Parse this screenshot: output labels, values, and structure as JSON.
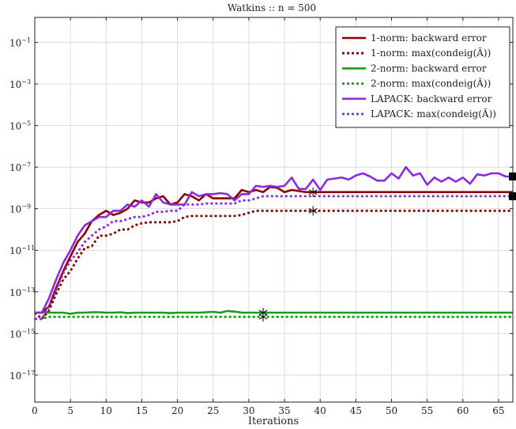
{
  "chart_data": {
    "type": "line",
    "title": "Watkins :: n = 500",
    "xlabel": "Iterations",
    "ylabel": "",
    "xlim": [
      0,
      67
    ],
    "ylim_log10": [
      -18.3,
      0.2
    ],
    "yscale": "log",
    "grid": true,
    "legend_position": "top-right",
    "x_ticks": [
      0,
      5,
      10,
      15,
      20,
      25,
      30,
      35,
      40,
      45,
      50,
      55,
      60,
      65
    ],
    "y_ticks": [
      {
        "base": "10",
        "exp": "−1",
        "log10": -1
      },
      {
        "base": "10",
        "exp": "−3",
        "log10": -3
      },
      {
        "base": "10",
        "exp": "−5",
        "log10": -5
      },
      {
        "base": "10",
        "exp": "−7",
        "log10": -7
      },
      {
        "base": "10",
        "exp": "−9",
        "log10": -9
      },
      {
        "base": "10",
        "exp": "−11",
        "log10": -11
      },
      {
        "base": "10",
        "exp": "−13",
        "log10": -13
      },
      {
        "base": "10",
        "exp": "−15",
        "log10": -15
      },
      {
        "base": "10",
        "exp": "−17",
        "log10": -17
      }
    ],
    "series": [
      {
        "name": "1-norm: backward error",
        "color": "#8b0000",
        "style": "solid",
        "x": [
          0,
          1,
          2,
          3,
          4,
          5,
          6,
          7,
          8,
          9,
          10,
          11,
          12,
          13,
          14,
          15,
          16,
          17,
          18,
          19,
          20,
          21,
          22,
          23,
          24,
          25,
          26,
          27,
          28,
          29,
          30,
          31,
          32,
          33,
          34,
          35,
          36,
          37,
          38,
          39,
          40,
          41,
          42,
          43,
          44,
          45,
          46,
          47,
          48,
          49,
          50,
          51,
          52,
          53,
          54,
          55,
          56,
          57,
          58,
          59,
          60,
          61,
          62,
          63,
          64,
          65,
          66,
          67
        ],
        "log10_y": [
          -14,
          -14,
          -13.7,
          -12.8,
          -12,
          -11.3,
          -10.6,
          -10.2,
          -9.6,
          -9.3,
          -9.1,
          -9.3,
          -9.2,
          -9.0,
          -8.6,
          -8.7,
          -8.7,
          -8.5,
          -8.4,
          -8.8,
          -8.7,
          -8.3,
          -8.4,
          -8.6,
          -8.3,
          -8.5,
          -8.5,
          -8.5,
          -8.5,
          -8.1,
          -8.2,
          -8.1,
          -8.2,
          -7.95,
          -8.0,
          -8.2,
          -8.1,
          -8.15,
          -8.2,
          -8.2,
          -8.2,
          -8.2,
          -8.2,
          -8.2,
          -8.2,
          -8.2,
          -8.2,
          -8.2,
          -8.2,
          -8.2,
          -8.2,
          -8.2,
          -8.2,
          -8.2,
          -8.2,
          -8.2,
          -8.2,
          -8.2,
          -8.2,
          -8.2,
          -8.2,
          -8.2,
          -8.2,
          -8.2,
          -8.2,
          -8.2,
          -8.2,
          -8.2
        ]
      },
      {
        "name": "1-norm: max(condeig(Ã))",
        "color": "#8b0000",
        "style": "dotted",
        "x": [
          0,
          1,
          2,
          3,
          4,
          5,
          6,
          7,
          8,
          9,
          10,
          11,
          12,
          13,
          14,
          15,
          16,
          17,
          18,
          19,
          20,
          21,
          22,
          23,
          24,
          25,
          26,
          27,
          28,
          29,
          30,
          31,
          32,
          33,
          34,
          35,
          36,
          37,
          38,
          39,
          40,
          41,
          42,
          43,
          44,
          45,
          46,
          47,
          48,
          49,
          50,
          51,
          52,
          53,
          54,
          55,
          56,
          57,
          58,
          59,
          60,
          61,
          62,
          63,
          64,
          65,
          66,
          67
        ],
        "log10_y": [
          -14,
          -14.3,
          -13.9,
          -13.1,
          -12.4,
          -12.0,
          -11.4,
          -10.9,
          -10.8,
          -10.3,
          -10.3,
          -10.2,
          -10.0,
          -10.0,
          -9.8,
          -9.7,
          -9.65,
          -9.65,
          -9.65,
          -9.65,
          -9.6,
          -9.4,
          -9.35,
          -9.35,
          -9.35,
          -9.35,
          -9.35,
          -9.35,
          -9.35,
          -9.3,
          -9.2,
          -9.1,
          -9.1,
          -9.1,
          -9.1,
          -9.1,
          -9.1,
          -9.1,
          -9.1,
          -9.1,
          -9.1,
          -9.1,
          -9.1,
          -9.1,
          -9.1,
          -9.1,
          -9.1,
          -9.1,
          -9.1,
          -9.1,
          -9.1,
          -9.1,
          -9.1,
          -9.1,
          -9.1,
          -9.1,
          -9.1,
          -9.1,
          -9.1,
          -9.1,
          -9.1,
          -9.1,
          -9.1,
          -9.1,
          -9.1,
          -9.1,
          -9.1,
          -9.1
        ]
      },
      {
        "name": "2-norm: backward error",
        "color": "#1b9a1b",
        "style": "solid",
        "x": [
          0,
          1,
          2,
          3,
          4,
          5,
          6,
          7,
          8,
          9,
          10,
          11,
          12,
          13,
          14,
          15,
          16,
          17,
          18,
          19,
          20,
          21,
          22,
          23,
          24,
          25,
          26,
          27,
          28,
          29,
          30,
          31,
          32,
          33,
          34,
          35,
          36,
          37,
          38,
          39,
          40,
          41,
          42,
          43,
          44,
          45,
          46,
          47,
          48,
          49,
          50,
          51,
          52,
          53,
          54,
          55,
          56,
          57,
          58,
          59,
          60,
          61,
          62,
          63,
          64,
          65,
          66,
          67
        ],
        "log10_y": [
          -14,
          -14,
          -14,
          -14,
          -14,
          -14.05,
          -14,
          -14,
          -13.98,
          -13.98,
          -14,
          -14,
          -13.98,
          -14.02,
          -14,
          -14,
          -14,
          -14,
          -14,
          -14.02,
          -14,
          -14,
          -14,
          -14,
          -13.98,
          -13.96,
          -14,
          -13.92,
          -13.95,
          -14,
          -14,
          -14,
          -14,
          -14,
          -14,
          -14,
          -14,
          -14,
          -14,
          -14,
          -14,
          -14,
          -14,
          -14,
          -14,
          -14,
          -14,
          -14,
          -14,
          -14,
          -14,
          -14,
          -14,
          -14,
          -14,
          -14,
          -14,
          -14,
          -14,
          -14,
          -14,
          -14,
          -14,
          -14,
          -14,
          -14,
          -14,
          -14
        ]
      },
      {
        "name": "2-norm: max(condeig(Ã))",
        "color": "#1b9a1b",
        "style": "dotted",
        "x": [
          0,
          1,
          2,
          3,
          4,
          5,
          6,
          7,
          8,
          9,
          10,
          11,
          12,
          13,
          14,
          15,
          16,
          17,
          18,
          19,
          20,
          21,
          22,
          23,
          24,
          25,
          26,
          27,
          28,
          29,
          30,
          31,
          32,
          33,
          34,
          35,
          36,
          37,
          38,
          39,
          40,
          41,
          42,
          43,
          44,
          45,
          46,
          47,
          48,
          49,
          50,
          51,
          52,
          53,
          54,
          55,
          56,
          57,
          58,
          59,
          60,
          61,
          62,
          63,
          64,
          65,
          66,
          67
        ],
        "log10_y": [
          -14.3,
          -14.3,
          -14.2,
          -14.2,
          -14.2,
          -14.2,
          -14.2,
          -14.2,
          -14.2,
          -14.2,
          -14.2,
          -14.2,
          -14.2,
          -14.2,
          -14.2,
          -14.2,
          -14.2,
          -14.2,
          -14.2,
          -14.2,
          -14.2,
          -14.2,
          -14.2,
          -14.2,
          -14.2,
          -14.2,
          -14.2,
          -14.2,
          -14.2,
          -14.2,
          -14.2,
          -14.2,
          -14.2,
          -14.2,
          -14.2,
          -14.2,
          -14.2,
          -14.2,
          -14.2,
          -14.2,
          -14.2,
          -14.2,
          -14.2,
          -14.2,
          -14.2,
          -14.2,
          -14.2,
          -14.2,
          -14.2,
          -14.2,
          -14.2,
          -14.2,
          -14.2,
          -14.2,
          -14.2,
          -14.2,
          -14.2,
          -14.2,
          -14.2,
          -14.2,
          -14.2,
          -14.2,
          -14.2,
          -14.2,
          -14.2,
          -14.2,
          -14.2,
          -14.2
        ]
      },
      {
        "name": "LAPACK: backward error",
        "color": "#8a2be2",
        "style": "solid",
        "x": [
          0,
          1,
          2,
          3,
          4,
          5,
          6,
          7,
          8,
          9,
          10,
          11,
          12,
          13,
          14,
          15,
          16,
          17,
          18,
          19,
          20,
          21,
          22,
          23,
          24,
          25,
          26,
          27,
          28,
          29,
          30,
          31,
          32,
          33,
          34,
          35,
          36,
          37,
          38,
          39,
          40,
          41,
          42,
          43,
          44,
          45,
          46,
          47,
          48,
          49,
          50,
          51,
          52,
          53,
          54,
          55,
          56,
          57,
          58,
          59,
          60,
          61,
          62,
          63,
          64,
          65,
          66,
          67
        ],
        "log10_y": [
          -14,
          -14,
          -13.3,
          -12.4,
          -11.6,
          -11,
          -10.3,
          -9.8,
          -9.6,
          -9.4,
          -9.4,
          -9.1,
          -9.1,
          -8.8,
          -8.9,
          -8.6,
          -8.9,
          -8.3,
          -8.7,
          -8.8,
          -8.8,
          -8.8,
          -8.2,
          -8.4,
          -8.3,
          -8.3,
          -8.25,
          -8.3,
          -8.6,
          -8.3,
          -8.3,
          -7.9,
          -7.95,
          -7.9,
          -7.95,
          -7.9,
          -7.5,
          -8.05,
          -8.05,
          -7.6,
          -8.1,
          -7.6,
          -7.55,
          -7.5,
          -7.6,
          -7.4,
          -7.3,
          -7.45,
          -7.65,
          -7.65,
          -7.3,
          -7.55,
          -7.0,
          -7.4,
          -7.3,
          -7.85,
          -7.5,
          -7.7,
          -7.5,
          -7.7,
          -7.5,
          -7.8,
          -7.35,
          -7.4,
          -7.3,
          -7.3,
          -7.45,
          -7.45
        ]
      },
      {
        "name": "LAPACK: max(condeig(Ã))",
        "color": "#8a2be2",
        "style": "dotted",
        "x": [
          0,
          1,
          2,
          3,
          4,
          5,
          6,
          7,
          8,
          9,
          10,
          11,
          12,
          13,
          14,
          15,
          16,
          17,
          18,
          19,
          20,
          21,
          22,
          23,
          24,
          25,
          26,
          27,
          28,
          29,
          30,
          31,
          32,
          33,
          34,
          35,
          36,
          37,
          38,
          39,
          40,
          41,
          42,
          43,
          44,
          45,
          46,
          47,
          48,
          49,
          50,
          51,
          52,
          53,
          54,
          55,
          56,
          57,
          58,
          59,
          60,
          61,
          62,
          63,
          64,
          65,
          66,
          67
        ],
        "log10_y": [
          -14.3,
          -14.3,
          -13.7,
          -12.9,
          -12.1,
          -11.5,
          -11.1,
          -10.6,
          -10.3,
          -10.0,
          -9.85,
          -9.6,
          -9.6,
          -9.5,
          -9.4,
          -9.4,
          -9.3,
          -9.15,
          -9.15,
          -9.1,
          -9.1,
          -8.8,
          -8.8,
          -8.8,
          -8.75,
          -8.75,
          -8.75,
          -8.75,
          -8.75,
          -8.6,
          -8.6,
          -8.5,
          -8.4,
          -8.4,
          -8.4,
          -8.4,
          -8.4,
          -8.4,
          -8.4,
          -8.4,
          -8.4,
          -8.4,
          -8.4,
          -8.4,
          -8.4,
          -8.4,
          -8.4,
          -8.4,
          -8.4,
          -8.4,
          -8.4,
          -8.4,
          -8.4,
          -8.4,
          -8.4,
          -8.4,
          -8.4,
          -8.4,
          -8.4,
          -8.4,
          -8.4,
          -8.4,
          -8.4,
          -8.4,
          -8.4,
          -8.4,
          -8.4,
          -8.4
        ]
      }
    ],
    "star_markers": [
      {
        "x": 39,
        "log10_y": -8.2
      },
      {
        "x": 39,
        "log10_y": -9.1
      },
      {
        "x": 32,
        "log10_y": -14.0
      },
      {
        "x": 32,
        "log10_y": -14.2
      }
    ],
    "square_markers": [
      {
        "x": 67,
        "log10_y": -7.45
      },
      {
        "x": 67,
        "log10_y": -8.4
      }
    ]
  }
}
